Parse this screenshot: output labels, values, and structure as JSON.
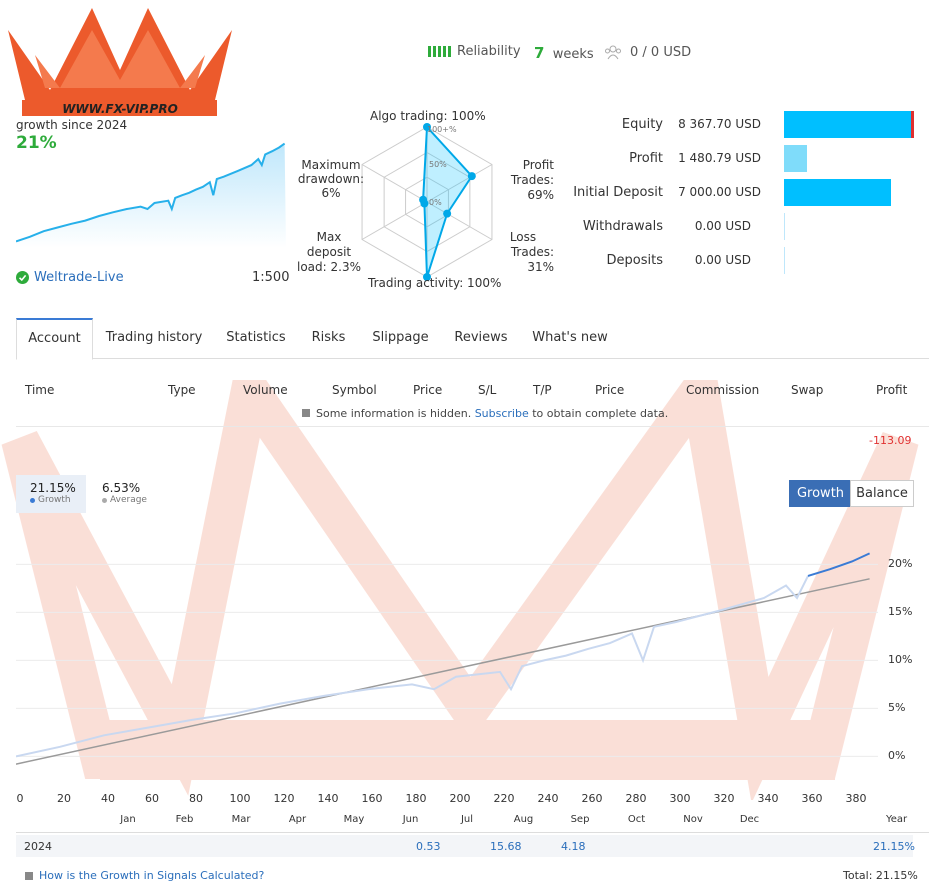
{
  "logo_text": "WWW.FX-VIP.PRO",
  "summary": {
    "growth_label": "growth since 2024",
    "growth_value": "21%",
    "broker": "Weltrade-Live",
    "leverage": "1:500"
  },
  "header": {
    "reliability_label": "Reliability",
    "weeks_value": "7",
    "weeks_label": "weeks",
    "subscribers": "0 / 0 USD"
  },
  "radar": {
    "algo": "Algo trading: 100%",
    "profit_trades": [
      "Profit",
      "Trades: 69%"
    ],
    "loss_trades": [
      "Loss",
      "Trades: 31%"
    ],
    "activity": "Trading activity: 100%",
    "max_deposit": [
      "Max deposit",
      "load: 2.3%"
    ],
    "max_drawdown": [
      "Maximum",
      "drawdown:",
      "6%"
    ],
    "scale_100": "100+%",
    "scale_50": "50%",
    "scale_0": "0%",
    "values": {
      "algo": 100,
      "profit": 69,
      "loss": 31,
      "activity": 100,
      "deposit_load": 2.3,
      "drawdown": 6
    }
  },
  "finance": [
    {
      "label": "Equity",
      "value": "8 367.70 USD",
      "fraction": 1.0
    },
    {
      "label": "Profit",
      "value": "1 480.79 USD",
      "fraction": 0.18
    },
    {
      "label": "Initial Deposit",
      "value": "7 000.00 USD",
      "fraction": 0.82
    },
    {
      "label": "Withdrawals",
      "value": "0.00 USD",
      "fraction": 0
    },
    {
      "label": "Deposits",
      "value": "0.00 USD",
      "fraction": 0
    }
  ],
  "tabs": [
    "Account",
    "Trading history",
    "Statistics",
    "Risks",
    "Slippage",
    "Reviews",
    "What's new"
  ],
  "table": {
    "headers": [
      "Time",
      "Type",
      "Volume",
      "Symbol",
      "Price",
      "S/L",
      "T/P",
      "Price",
      "Commission",
      "Swap",
      "Profit"
    ],
    "hidden_note_prefix": "Some information is hidden.",
    "hidden_note_link": "Subscribe",
    "hidden_note_suffix": "to obtain complete data.",
    "profit_value": "-113.09"
  },
  "chart_controls": {
    "growth_value": "21.15%",
    "growth_label": "Growth",
    "average_value": "6.53%",
    "average_label": "Average",
    "btn_growth": "Growth",
    "btn_balance": "Balance"
  },
  "chart_data": {
    "type": "line",
    "x_ticks": [
      "0",
      "20",
      "40",
      "60",
      "80",
      "100",
      "120",
      "140",
      "160",
      "180",
      "200",
      "220",
      "240",
      "260",
      "280",
      "300",
      "320",
      "340",
      "360",
      "380"
    ],
    "y_ticks": [
      "20%",
      "15%",
      "10%",
      "5%",
      "0%"
    ],
    "months": [
      "Jan",
      "Feb",
      "Mar",
      "Apr",
      "May",
      "Jun",
      "Jul",
      "Aug",
      "Sep",
      "Oct",
      "Nov",
      "Dec"
    ],
    "x_range": [
      0,
      390
    ],
    "y_range": [
      -1,
      21.5
    ],
    "growth_series": [
      [
        0,
        0
      ],
      [
        20,
        1
      ],
      [
        40,
        2.2
      ],
      [
        60,
        3
      ],
      [
        80,
        3.8
      ],
      [
        100,
        4.5
      ],
      [
        120,
        5.5
      ],
      [
        140,
        6.3
      ],
      [
        160,
        7
      ],
      [
        180,
        7.5
      ],
      [
        190,
        7
      ],
      [
        200,
        8.3
      ],
      [
        220,
        8.8
      ],
      [
        225,
        7
      ],
      [
        230,
        9.4
      ],
      [
        240,
        10
      ],
      [
        250,
        10.5
      ],
      [
        260,
        11.2
      ],
      [
        270,
        11.8
      ],
      [
        280,
        12.8
      ],
      [
        285,
        10
      ],
      [
        290,
        13.5
      ],
      [
        300,
        14
      ],
      [
        320,
        15.2
      ],
      [
        340,
        16.5
      ],
      [
        350,
        17.8
      ],
      [
        355,
        16.5
      ],
      [
        360,
        18.8
      ],
      [
        370,
        19.5
      ],
      [
        380,
        20.3
      ],
      [
        388,
        21.15
      ]
    ],
    "trend_series": [
      [
        0,
        -0.8
      ],
      [
        388,
        18.5
      ]
    ]
  },
  "year_row": {
    "year": "2024",
    "jun": "0.53",
    "jul": "15.68",
    "aug": "4.18",
    "total_year": "21.15%"
  },
  "footer": {
    "help_link": "How is the Growth in Signals Calculated?",
    "total": "Total: 21.15%"
  }
}
